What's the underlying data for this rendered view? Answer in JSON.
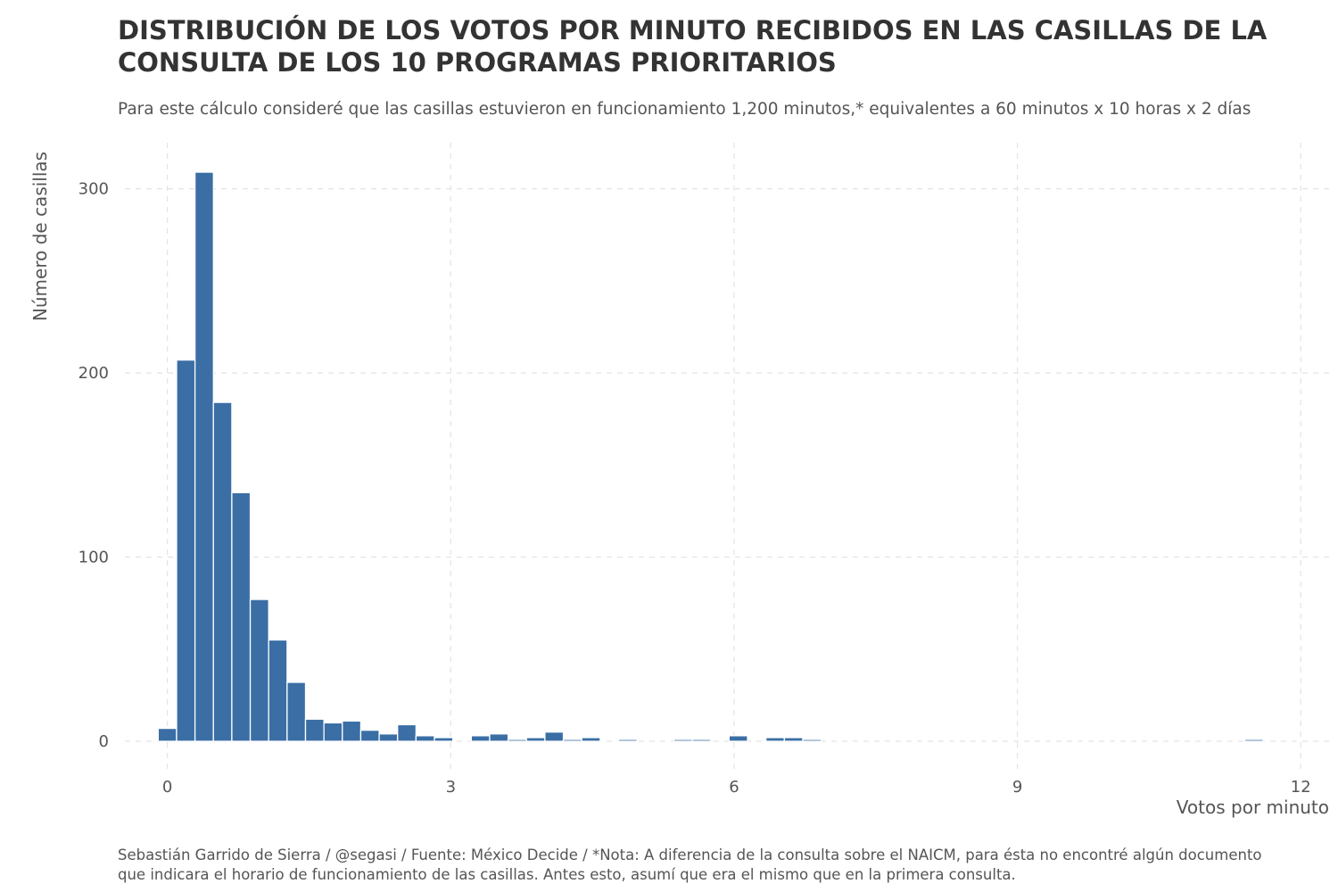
{
  "chart_data": {
    "type": "bar",
    "title": "DISTRIBUCIÓN DE LOS VOTOS POR MINUTO RECIBIDOS EN LAS CASILLAS DE LA CONSULTA DE LOS 10 PROGRAMAS PRIORITARIOS",
    "subtitle": "Para este cálculo consideré que las casillas estuvieron en funcionamiento 1,200 minutos,* equivalentes a 60 minutos x 10 horas x 2 días",
    "caption": "Sebastián Garrido de Sierra / @segasi / Fuente: México Decide / *Nota: A diferencia de la consulta sobre el NAICM, para ésta no encontré algún documento que indicara el horario de funcionamiento de las casillas. Antes esto, asumí que era el mismo que en la primera consulta.",
    "xlabel": "Votos por minuto",
    "ylabel": "Número de casillas",
    "xlim": [
      -0.45,
      12.3
    ],
    "ylim": [
      -15,
      325
    ],
    "xticks": [
      0,
      3,
      6,
      9,
      12
    ],
    "xtick_labels": [
      "0",
      "3",
      "6",
      "9",
      "12"
    ],
    "yticks": [
      0,
      100,
      200,
      300
    ],
    "ytick_labels": [
      "0",
      "100",
      "200",
      "300"
    ],
    "grid": true,
    "bar_color": "#3a6ea5",
    "bin_width": 0.195,
    "bins": [
      {
        "x": 0.0,
        "count": 7
      },
      {
        "x": 0.195,
        "count": 207
      },
      {
        "x": 0.39,
        "count": 309
      },
      {
        "x": 0.585,
        "count": 184
      },
      {
        "x": 0.78,
        "count": 135
      },
      {
        "x": 0.975,
        "count": 77
      },
      {
        "x": 1.17,
        "count": 55
      },
      {
        "x": 1.365,
        "count": 32
      },
      {
        "x": 1.56,
        "count": 12
      },
      {
        "x": 1.755,
        "count": 10
      },
      {
        "x": 1.95,
        "count": 11
      },
      {
        "x": 2.145,
        "count": 6
      },
      {
        "x": 2.34,
        "count": 4
      },
      {
        "x": 2.535,
        "count": 9
      },
      {
        "x": 2.73,
        "count": 3
      },
      {
        "x": 2.925,
        "count": 2
      },
      {
        "x": 3.315,
        "count": 3
      },
      {
        "x": 3.51,
        "count": 4
      },
      {
        "x": 3.705,
        "count": 1
      },
      {
        "x": 3.9,
        "count": 2
      },
      {
        "x": 4.095,
        "count": 5
      },
      {
        "x": 4.29,
        "count": 1
      },
      {
        "x": 4.485,
        "count": 2
      },
      {
        "x": 4.875,
        "count": 1
      },
      {
        "x": 5.46,
        "count": 1
      },
      {
        "x": 5.655,
        "count": 1
      },
      {
        "x": 6.045,
        "count": 3
      },
      {
        "x": 6.435,
        "count": 2
      },
      {
        "x": 6.63,
        "count": 2
      },
      {
        "x": 6.825,
        "count": 1
      },
      {
        "x": 11.505,
        "count": 1
      }
    ]
  }
}
